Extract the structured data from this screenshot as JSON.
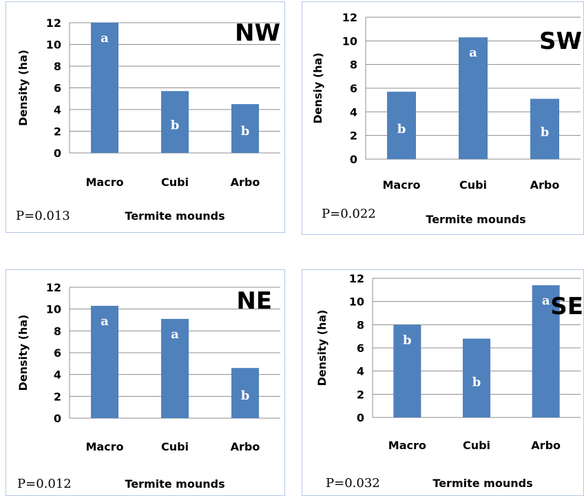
{
  "chart_data": [
    {
      "type": "bar",
      "panel_label": "NW",
      "ylabel": "Density (ha)",
      "xlabel": "Termite mounds",
      "p_value": "P=0.013",
      "categories": [
        "Macro",
        "Cubi",
        "Arbo"
      ],
      "values": [
        12.0,
        5.7,
        4.5
      ],
      "letters": [
        "a",
        "b",
        "b"
      ],
      "ylim": [
        0,
        12
      ],
      "yticks": [
        "0",
        "2",
        "4",
        "6",
        "8",
        "10",
        "12"
      ],
      "grid": true,
      "bar_color": "#4f81bd"
    },
    {
      "type": "bar",
      "panel_label": "SW",
      "ylabel": "Densiy (ha)",
      "xlabel": "Termite mounds",
      "p_value": "P=0.022",
      "categories": [
        "Macro",
        "Cubi",
        "Arbo"
      ],
      "values": [
        5.7,
        10.3,
        5.1
      ],
      "letters": [
        "b",
        "a",
        "b"
      ],
      "ylim": [
        0,
        12
      ],
      "yticks": [
        "0",
        "2",
        "4",
        "6",
        "8",
        "10",
        "12"
      ],
      "grid": true,
      "bar_color": "#4f81bd"
    },
    {
      "type": "bar",
      "panel_label": "NE",
      "ylabel": "Density (ha)",
      "xlabel": "Termite mounds",
      "p_value": "P=0.012",
      "categories": [
        "Macro",
        "Cubi",
        "Arbo"
      ],
      "values": [
        10.3,
        9.1,
        4.6
      ],
      "letters": [
        "a",
        "a",
        "b"
      ],
      "ylim": [
        0,
        12
      ],
      "yticks": [
        "0",
        "2",
        "4",
        "6",
        "8",
        "10",
        "12"
      ],
      "grid": true,
      "bar_color": "#4f81bd"
    },
    {
      "type": "bar",
      "panel_label": "SE",
      "ylabel": "Density (ha)",
      "xlabel": "Termite mounds",
      "p_value": "P=0.032",
      "categories": [
        "Macro",
        "Cubi",
        "Arbo"
      ],
      "values": [
        8.0,
        6.8,
        11.4
      ],
      "letters": [
        "b",
        "b",
        "a"
      ],
      "ylim": [
        0,
        12
      ],
      "yticks": [
        "0",
        "2",
        "4",
        "6",
        "8",
        "10",
        "12"
      ],
      "grid": true,
      "bar_color": "#4f81bd"
    }
  ]
}
